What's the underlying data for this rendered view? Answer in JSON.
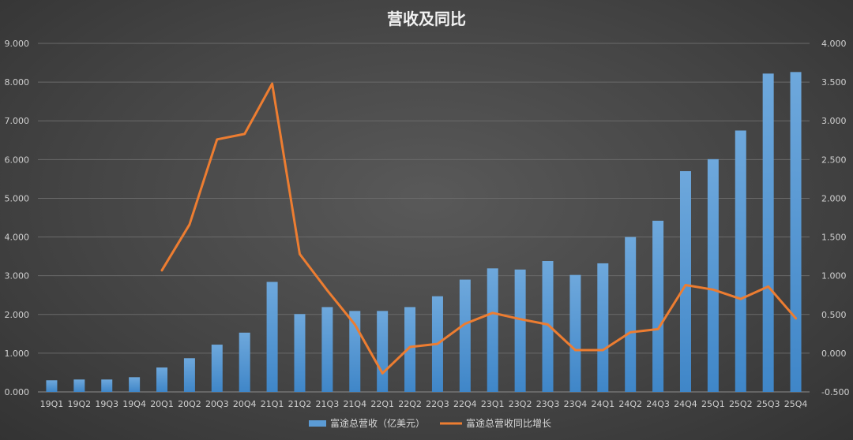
{
  "chart_data": {
    "type": "bar",
    "title": "营收及同比",
    "categories": [
      "19Q1",
      "19Q2",
      "19Q3",
      "19Q4",
      "20Q1",
      "20Q2",
      "20Q3",
      "20Q4",
      "21Q1",
      "21Q2",
      "21Q3",
      "21Q4",
      "22Q1",
      "22Q2",
      "22Q3",
      "22Q4",
      "23Q1",
      "23Q2",
      "23Q3",
      "23Q4",
      "24Q1",
      "24Q2",
      "24Q3",
      "24Q4",
      "25Q1",
      "25Q2",
      "25Q3",
      "25Q4"
    ],
    "series": [
      {
        "name": "富途总营收（亿美元）",
        "type": "bar",
        "axis": "left",
        "color": "#5b9bd5",
        "values": [
          0.3,
          0.32,
          0.32,
          0.38,
          0.63,
          0.87,
          1.22,
          1.53,
          2.84,
          2.01,
          2.19,
          2.09,
          2.09,
          2.19,
          2.47,
          2.9,
          3.19,
          3.16,
          3.38,
          3.02,
          3.32,
          4.0,
          4.42,
          5.7,
          6.01,
          6.75,
          8.22,
          8.26
        ]
      },
      {
        "name": "富途总营收同比增长",
        "type": "line",
        "axis": "right",
        "color": "#ed7d31",
        "values": [
          null,
          null,
          null,
          null,
          1.07,
          1.66,
          2.76,
          2.83,
          3.48,
          1.28,
          0.81,
          0.37,
          -0.26,
          0.08,
          0.12,
          0.38,
          0.52,
          0.44,
          0.37,
          0.04,
          0.04,
          0.27,
          0.31,
          0.88,
          0.82,
          0.7,
          0.86,
          0.45
        ]
      }
    ],
    "y_left": {
      "min": 0,
      "max": 9,
      "ticks": [
        "0.000",
        "1.000",
        "2.000",
        "3.000",
        "4.000",
        "5.000",
        "6.000",
        "7.000",
        "8.000",
        "9.000"
      ]
    },
    "y_right": {
      "min": -0.5,
      "max": 4,
      "ticks": [
        "-0.500",
        "0.000",
        "0.500",
        "1.000",
        "1.500",
        "2.000",
        "2.500",
        "3.000",
        "3.500",
        "4.000"
      ]
    },
    "grid": true,
    "legend_position": "bottom"
  }
}
